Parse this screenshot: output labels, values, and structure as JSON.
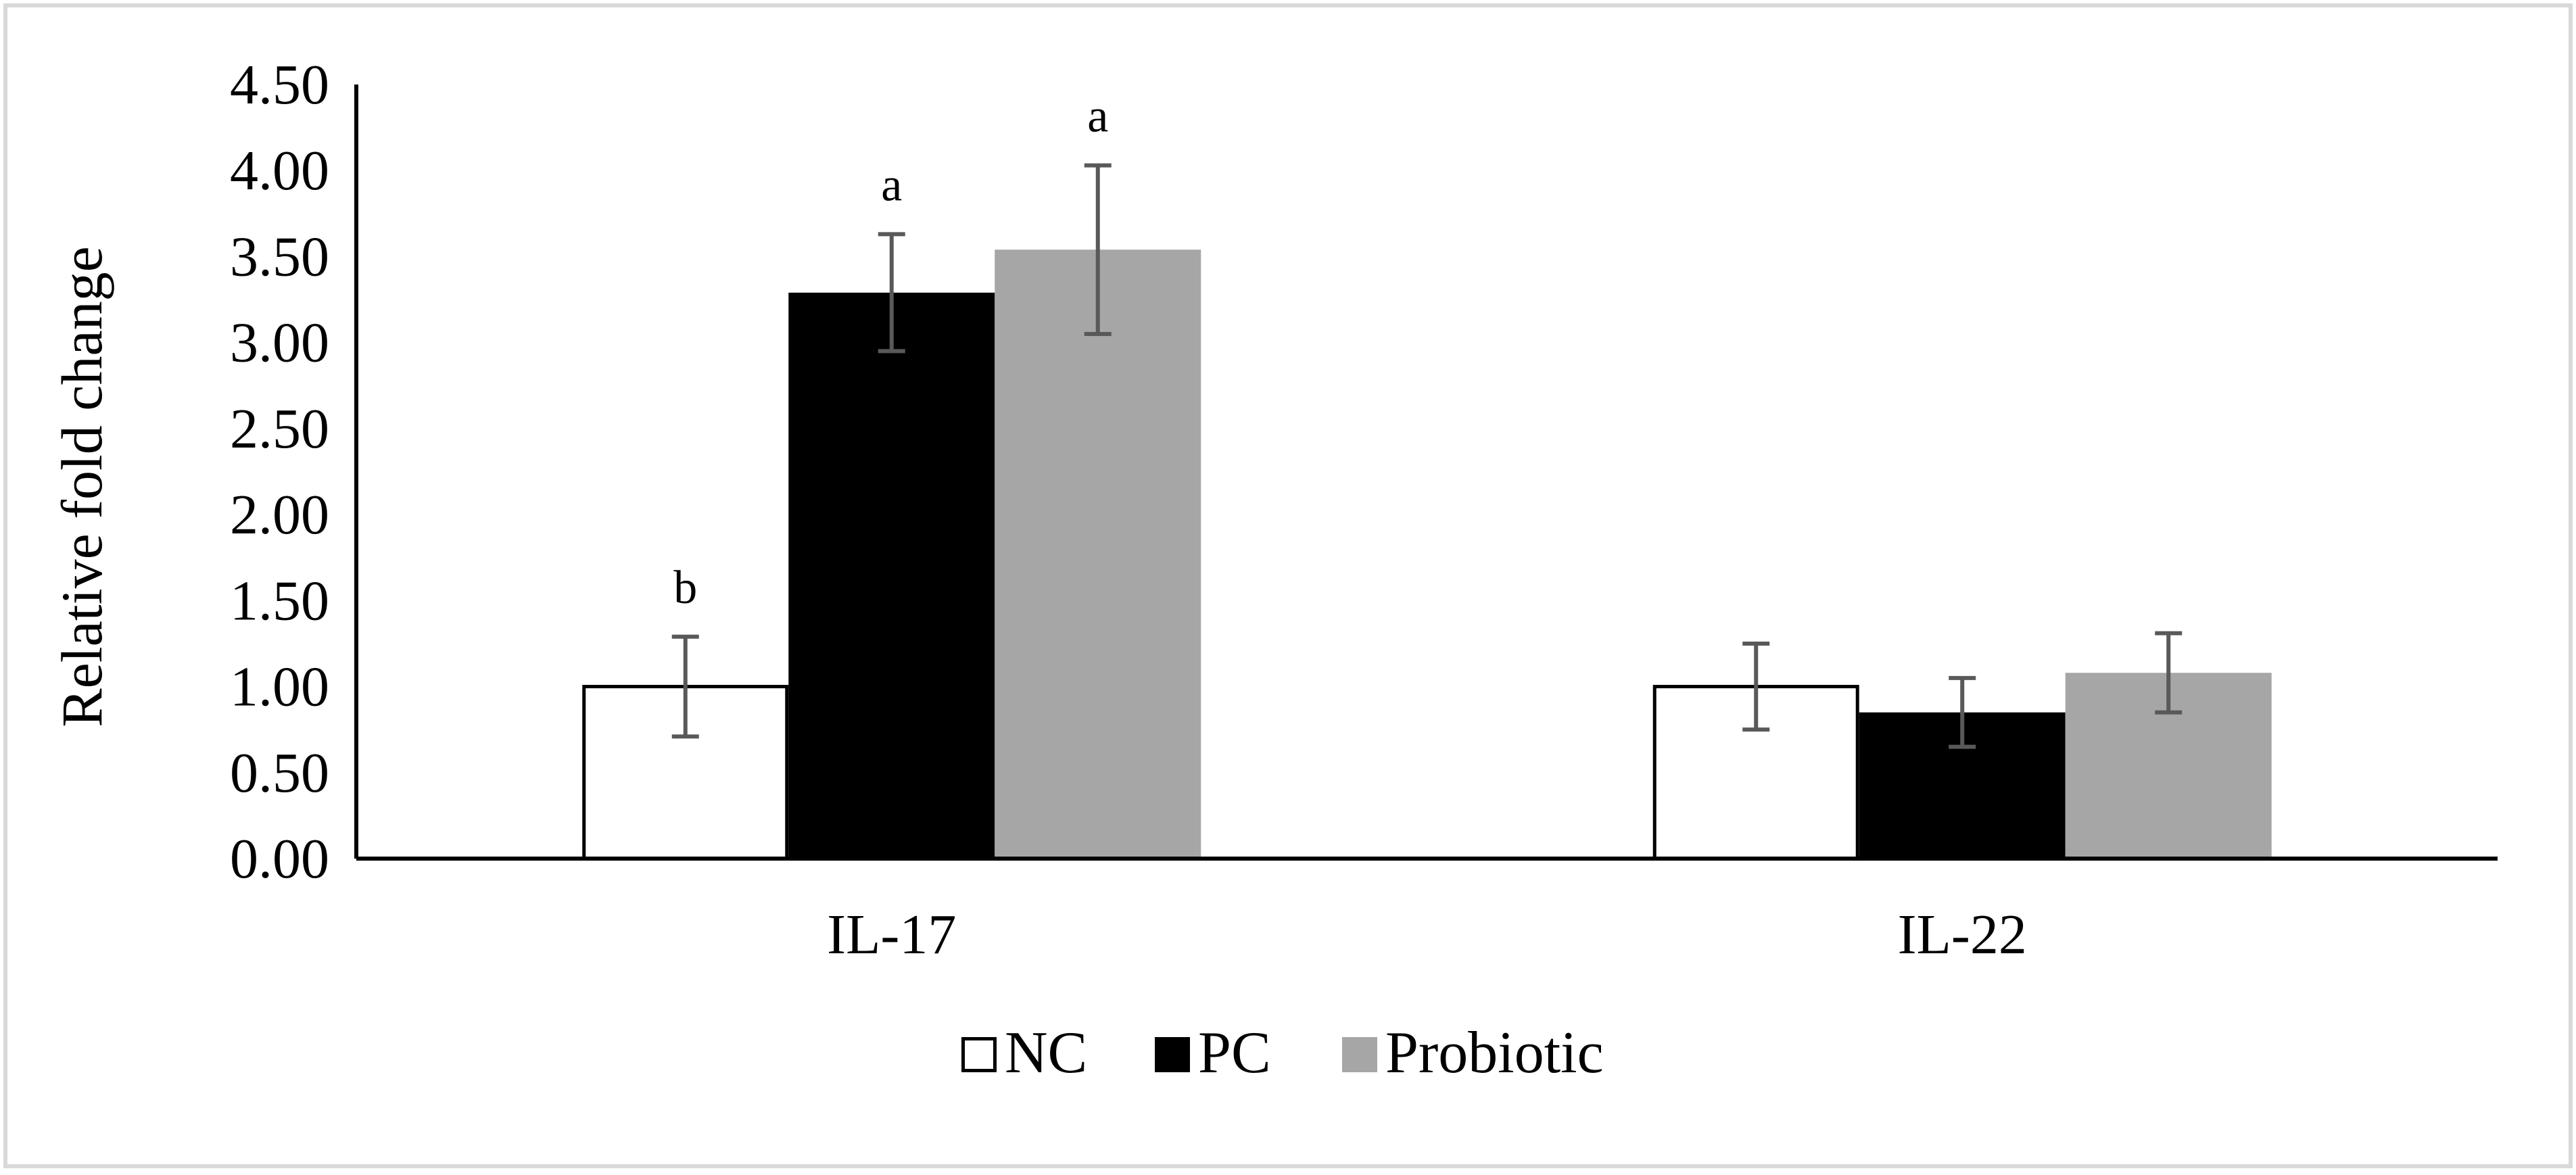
{
  "chart_data": {
    "type": "bar",
    "title": "",
    "xlabel": "",
    "ylabel": "Relative fold change",
    "ylim": [
      0,
      4.5
    ],
    "yticks": [
      "0.00",
      "0.50",
      "1.00",
      "1.50",
      "2.00",
      "2.50",
      "3.00",
      "3.50",
      "4.00",
      "4.50"
    ],
    "ytick_values": [
      0,
      0.5,
      1,
      1.5,
      2,
      2.5,
      3,
      3.5,
      4,
      4.5
    ],
    "categories": [
      "IL-17",
      "IL-22"
    ],
    "series": [
      {
        "name": "NC",
        "values": [
          1.0,
          1.0
        ],
        "error": [
          0.29,
          0.25
        ],
        "letters": [
          "b",
          ""
        ],
        "fill": "#ffffff",
        "stroke": "#000000"
      },
      {
        "name": "PC",
        "values": [
          3.29,
          0.85
        ],
        "error": [
          0.34,
          0.2
        ],
        "letters": [
          "a",
          ""
        ],
        "fill": "#000000",
        "stroke": "#000000"
      },
      {
        "name": "Probiotic",
        "values": [
          3.54,
          1.08
        ],
        "error": [
          0.49,
          0.23
        ],
        "letters": [
          "a",
          ""
        ],
        "fill": "#a6a6a6",
        "stroke": "#a6a6a6"
      }
    ],
    "error_bar_color": "#595959",
    "grid": false,
    "legend_position": "bottom-center"
  }
}
